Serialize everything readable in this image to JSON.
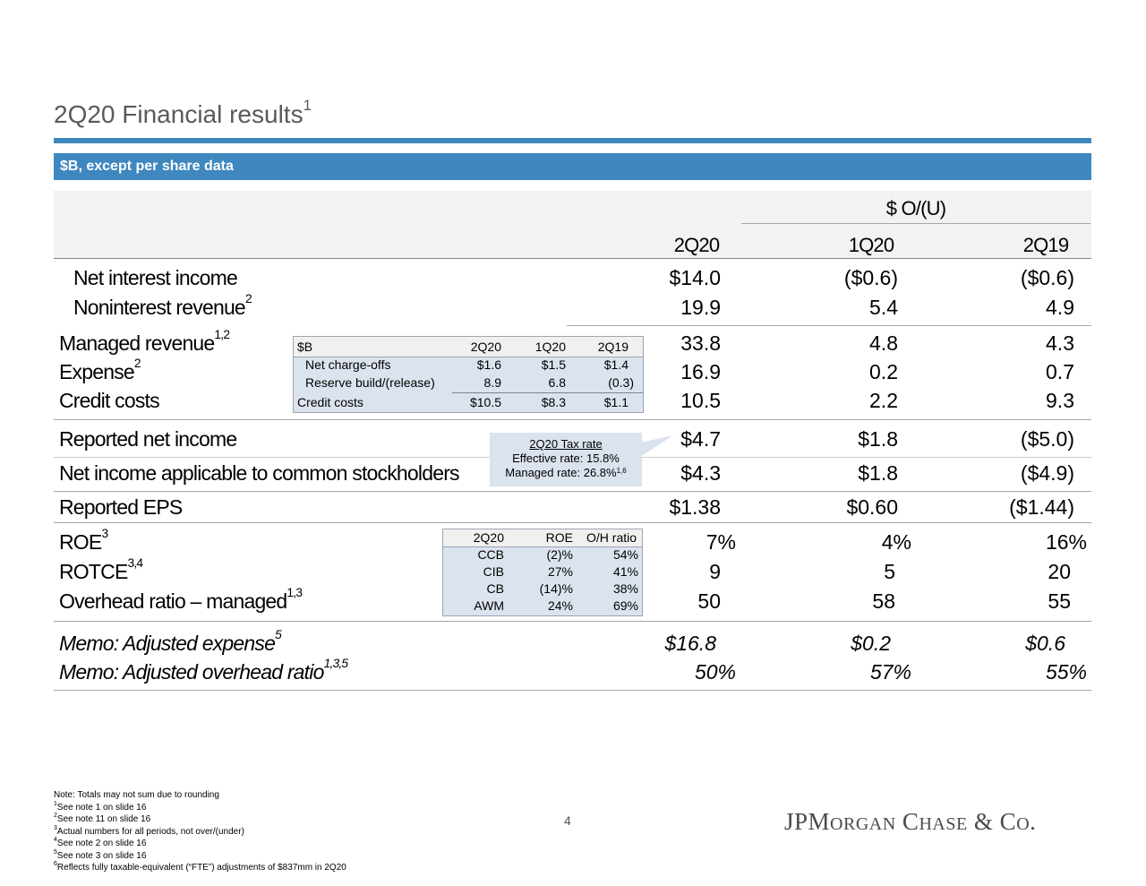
{
  "title": {
    "text": "2Q20 Financial results",
    "sup": "1"
  },
  "subheader": "$B, except per share data",
  "columns": {
    "group": "$ O/(U)",
    "c1": "2Q20",
    "c2": "1Q20",
    "c3": "2Q19"
  },
  "rows": [
    {
      "label": "Net interest income",
      "sup": "",
      "v": [
        "$14.0",
        "($0.6)",
        "($0.6)"
      ]
    },
    {
      "label": "Noninterest revenue",
      "sup": "2",
      "v": [
        "19.9",
        "5.4",
        "4.9"
      ]
    },
    {
      "label": "Managed revenue",
      "sup": "1,2",
      "v": [
        "33.8",
        "4.8",
        "4.3"
      ]
    },
    {
      "label": "Expense",
      "sup": "2",
      "v": [
        "16.9",
        "0.2",
        "0.7"
      ]
    },
    {
      "label": "Credit costs",
      "sup": "",
      "v": [
        "10.5",
        "2.2",
        "9.3"
      ]
    },
    {
      "label": "Reported net income",
      "sup": "",
      "v": [
        "$4.7",
        "$1.8",
        "($5.0)"
      ]
    },
    {
      "label": "Net income applicable to common stockholders",
      "sup": "",
      "v": [
        "$4.3",
        "$1.8",
        "($4.9)"
      ]
    },
    {
      "label": "Reported EPS",
      "sup": "",
      "v": [
        "$1.38",
        "$0.60",
        "($1.44)"
      ]
    },
    {
      "label": "ROE",
      "sup": "3",
      "v": [
        "7%",
        "4%",
        "16%"
      ]
    },
    {
      "label": "ROTCE",
      "sup": "3,4",
      "v": [
        "9",
        "5",
        "20"
      ]
    },
    {
      "label": "Overhead ratio – managed",
      "sup": "1,3",
      "v": [
        "50",
        "58",
        "55"
      ]
    },
    {
      "label": "Memo: Adjusted expense",
      "sup": "5",
      "v": [
        "$16.8",
        "$0.2",
        "$0.6"
      ]
    },
    {
      "label": "Memo: Adjusted overhead ratio",
      "sup": "1,3,5",
      "v": [
        "50%",
        "57%",
        "55%"
      ]
    }
  ],
  "credit_inset": {
    "header": [
      "$B",
      "2Q20",
      "1Q20",
      "2Q19"
    ],
    "rows": [
      [
        "Net charge-offs",
        "$1.6",
        "$1.5",
        "$1.4"
      ],
      [
        "Reserve build/(release)",
        "8.9",
        "6.8",
        "(0.3)"
      ],
      [
        "Credit costs",
        "$10.5",
        "$8.3",
        "$1.1"
      ]
    ]
  },
  "tax_callout": {
    "title": "2Q20 Tax rate",
    "effective": "Effective rate: 15.8%",
    "managed": "Managed rate: 26.8%",
    "managed_sup": "1,6"
  },
  "roe_inset": {
    "header": [
      "2Q20",
      "ROE",
      "O/H ratio"
    ],
    "rows": [
      [
        "CCB",
        "(2)%",
        "54%"
      ],
      [
        "CIB",
        "27%",
        "41%"
      ],
      [
        "CB",
        "(14)%",
        "38%"
      ],
      [
        "AWM",
        "24%",
        "69%"
      ]
    ]
  },
  "footnotes": [
    {
      "sup": "",
      "text": "Note: Totals may not sum due to rounding"
    },
    {
      "sup": "1",
      "text": "See note 1 on slide 16"
    },
    {
      "sup": "2",
      "text": "See note 11 on slide 16"
    },
    {
      "sup": "3",
      "text": "Actual numbers for all periods, not over/(under)"
    },
    {
      "sup": "4",
      "text": "See note 2 on slide 16"
    },
    {
      "sup": "5",
      "text": "See note 3 on slide 16"
    },
    {
      "sup": "6",
      "text": "Reflects fully taxable-equivalent (“FTE”) adjustments of $837mm in 2Q20"
    }
  ],
  "page_number": "4",
  "logo": "JPMorgan Chase & Co.",
  "colors": {
    "accent": "#3f87bf",
    "inset_fill": "#dbe3ee"
  }
}
